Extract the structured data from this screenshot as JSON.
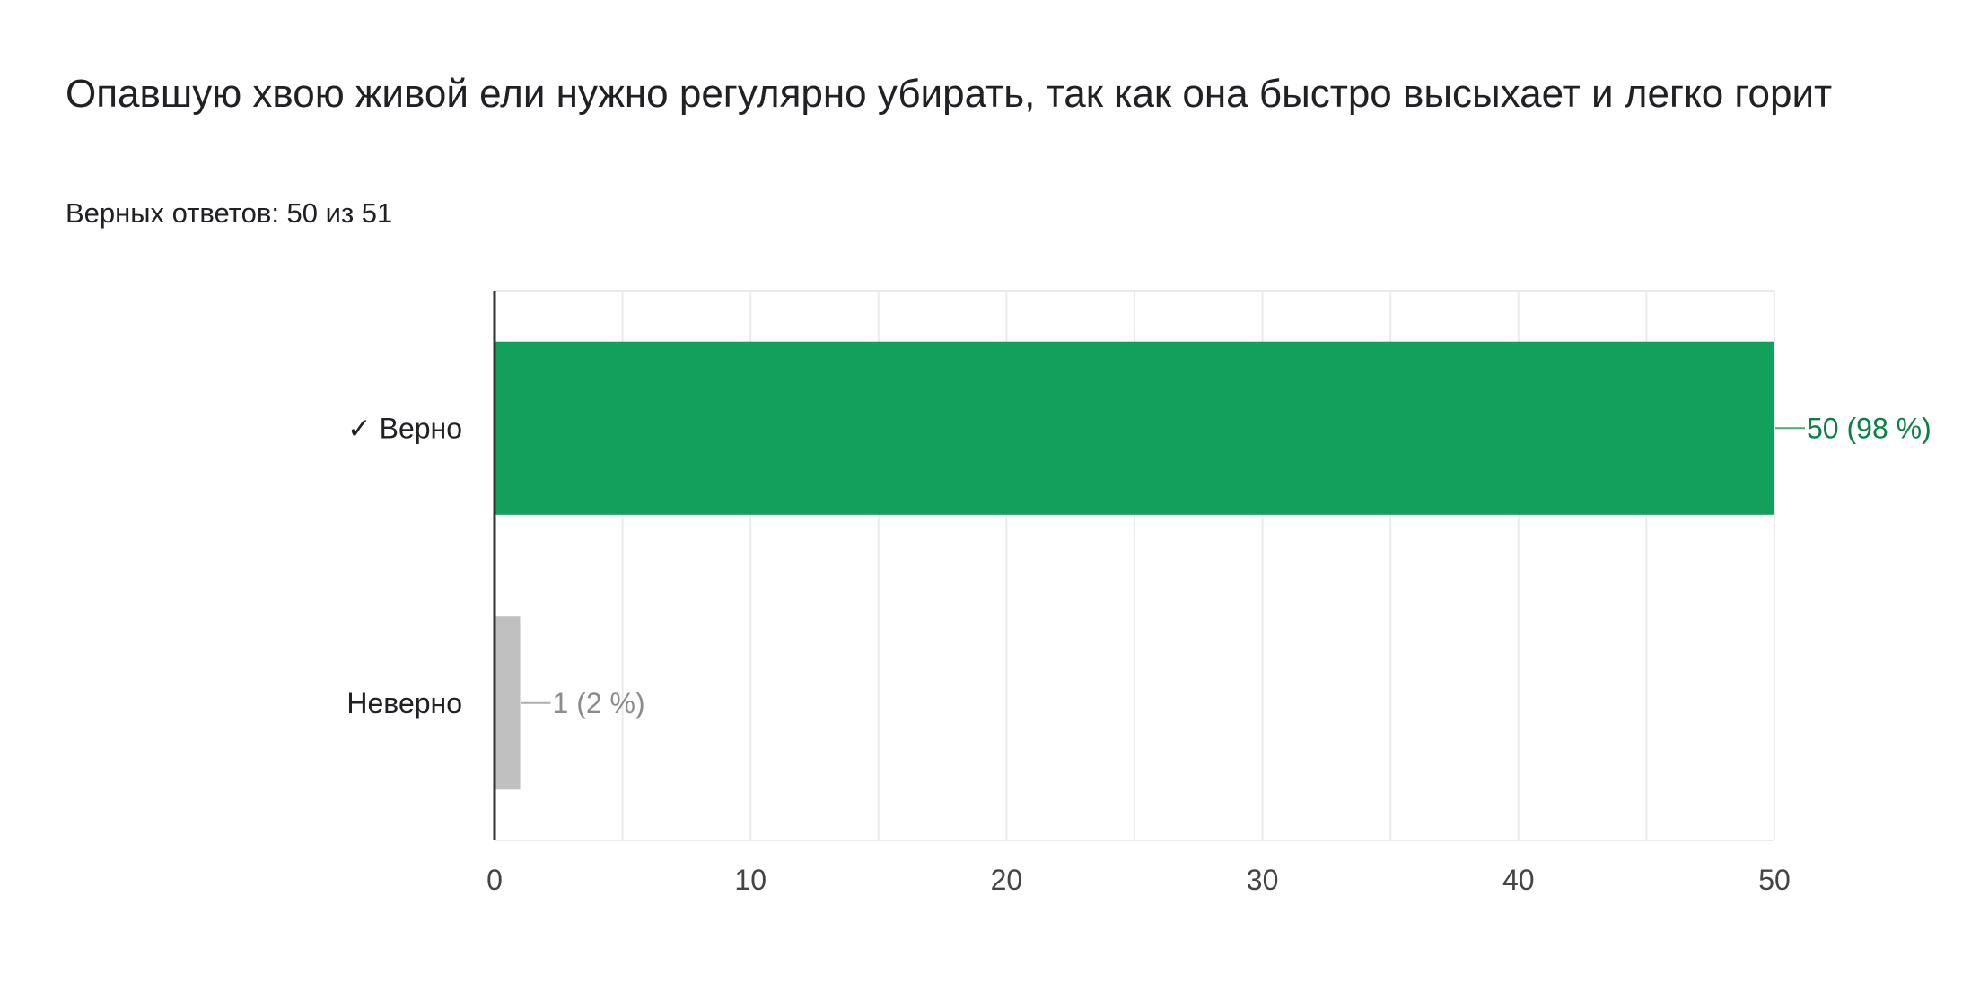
{
  "question": {
    "title": "Опавшую хвою живой ели нужно регулярно убирать, так как она быстро высыхает и легко горит",
    "score": "Верных ответов: 50 из 51"
  },
  "chart_data": {
    "type": "bar",
    "orientation": "horizontal",
    "categories": [
      "✓ Верно",
      "Неверно"
    ],
    "values": [
      50,
      1
    ],
    "data_labels": [
      "50 (98 %)",
      "1 (2 %)"
    ],
    "colors": [
      "#12a05c",
      "#c0c0c0"
    ],
    "label_colors": [
      "#0b8043",
      "#8c8c8c"
    ],
    "xlim": [
      0,
      50
    ],
    "xticks": [
      0,
      10,
      20,
      30,
      40,
      50
    ],
    "grid": true
  }
}
